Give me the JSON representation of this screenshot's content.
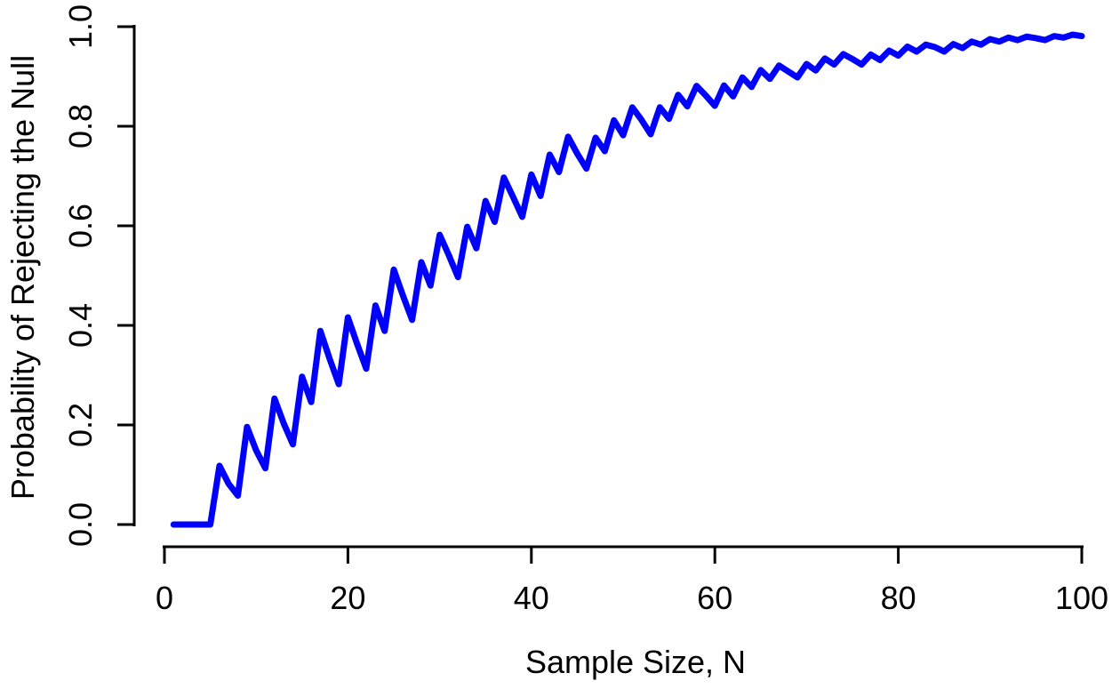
{
  "chart_data": {
    "type": "line",
    "title": "",
    "xlabel": "Sample Size, N",
    "ylabel": "Probability of Rejecting the Null",
    "xlim": [
      0,
      100
    ],
    "ylim": [
      0.0,
      1.0
    ],
    "x_ticks": [
      0,
      20,
      40,
      60,
      80,
      100
    ],
    "x_tick_labels": [
      "0",
      "20",
      "40",
      "60",
      "80",
      "100"
    ],
    "y_ticks": [
      0.0,
      0.2,
      0.4,
      0.6,
      0.8,
      1.0
    ],
    "y_tick_labels": [
      "0.0",
      "0.2",
      "0.4",
      "0.6",
      "0.8",
      "1.0"
    ],
    "grid": false,
    "legend": "none",
    "line_color": "#0000FF",
    "axis_color": "#000000",
    "background_color": "#FFFFFF",
    "series": [
      {
        "name": "probability-of-rejecting-null",
        "x": [
          1,
          2,
          3,
          4,
          5,
          6,
          7,
          8,
          9,
          10,
          11,
          12,
          13,
          14,
          15,
          16,
          17,
          18,
          19,
          20,
          21,
          22,
          23,
          24,
          25,
          26,
          27,
          28,
          29,
          30,
          31,
          32,
          33,
          34,
          35,
          36,
          37,
          38,
          39,
          40,
          41,
          42,
          43,
          44,
          45,
          46,
          47,
          48,
          49,
          50,
          51,
          52,
          53,
          54,
          55,
          56,
          57,
          58,
          59,
          60,
          61,
          62,
          63,
          64,
          65,
          66,
          67,
          68,
          69,
          70,
          71,
          72,
          73,
          74,
          75,
          76,
          77,
          78,
          79,
          80,
          81,
          82,
          83,
          84,
          85,
          86,
          87,
          88,
          89,
          90,
          91,
          92,
          93,
          94,
          95,
          96,
          97,
          98,
          99,
          100
        ],
        "y": [
          0,
          0,
          0,
          0,
          0,
          0.118,
          0.082,
          0.058,
          0.196,
          0.149,
          0.113,
          0.253,
          0.203,
          0.161,
          0.297,
          0.246,
          0.389,
          0.333,
          0.282,
          0.416,
          0.363,
          0.313,
          0.44,
          0.389,
          0.512,
          0.46,
          0.411,
          0.527,
          0.48,
          0.582,
          0.541,
          0.497,
          0.598,
          0.555,
          0.65,
          0.608,
          0.697,
          0.658,
          0.618,
          0.703,
          0.66,
          0.743,
          0.708,
          0.779,
          0.745,
          0.715,
          0.777,
          0.75,
          0.812,
          0.782,
          0.838,
          0.813,
          0.784,
          0.838,
          0.815,
          0.863,
          0.84,
          0.881,
          0.862,
          0.841,
          0.882,
          0.86,
          0.898,
          0.879,
          0.913,
          0.895,
          0.922,
          0.91,
          0.898,
          0.925,
          0.912,
          0.936,
          0.924,
          0.945,
          0.935,
          0.924,
          0.944,
          0.933,
          0.952,
          0.942,
          0.96,
          0.95,
          0.964,
          0.959,
          0.95,
          0.965,
          0.957,
          0.97,
          0.964,
          0.975,
          0.97,
          0.978,
          0.973,
          0.98,
          0.977,
          0.973,
          0.981,
          0.978,
          0.984,
          0.981
        ]
      }
    ]
  }
}
